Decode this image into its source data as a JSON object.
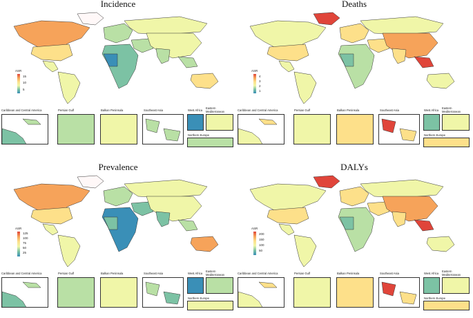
{
  "panels": [
    {
      "key": "incidence",
      "title": "Incidence",
      "legend": {
        "title": "ASR",
        "ticks": [
          "15",
          "10",
          "5"
        ]
      }
    },
    {
      "key": "deaths",
      "title": "Deaths",
      "legend": {
        "title": "ASR",
        "ticks": [
          "4",
          "3",
          "2",
          "1"
        ]
      }
    },
    {
      "key": "prevalence",
      "title": "Prevalence",
      "legend": {
        "title": "ASR",
        "ticks": [
          "125",
          "100",
          "75",
          "50",
          "25"
        ]
      }
    },
    {
      "key": "dalys",
      "title": "DALYs",
      "legend": {
        "title": "ASR",
        "ticks": [
          "200",
          "150",
          "100",
          "50"
        ]
      }
    }
  ],
  "insets": {
    "caribbean": "Caribbean and Central America",
    "persian_gulf": "Persian Gulf",
    "balkan": "Balkan Peninsula",
    "southeast_asia": "Southeast Asia",
    "west_africa": "West Africa",
    "eastern_med_1": "Eastern",
    "eastern_med_2": "Mediterranean",
    "northern_europe": "Northern Europe"
  },
  "colors": {
    "low": "#3a8fb7",
    "low2": "#7cc2a4",
    "mid_low": "#b9e0a5",
    "mid": "#f0f6a8",
    "mid_high": "#fde08a",
    "high": "#f6a35a",
    "top": "#e0453a",
    "border": "#333333"
  }
}
